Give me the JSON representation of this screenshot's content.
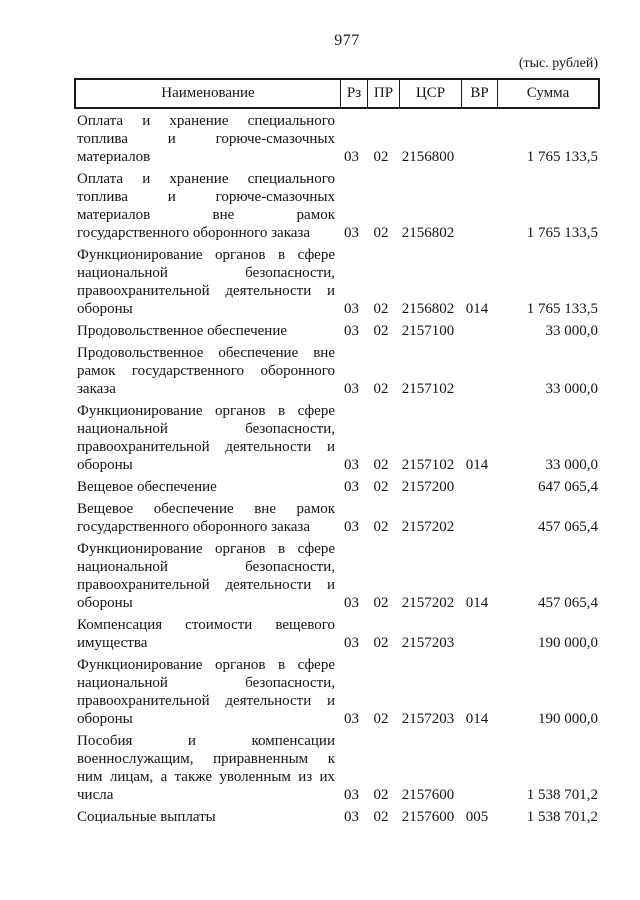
{
  "page": {
    "number": "977"
  },
  "table": {
    "units_note": "(тыс. рублей)",
    "columns": [
      "Наименование",
      "Рз",
      "ПР",
      "ЦСР",
      "ВР",
      "Сумма"
    ],
    "rows": [
      {
        "name_lines": [
          "Оплата и хранение специального",
          "топлива и горюче-смазочных",
          "материалов"
        ],
        "rz": "03",
        "pr": "02",
        "csr": "2156800",
        "vr": "",
        "sum": "1 765 133,5"
      },
      {
        "name_lines": [
          "Оплата и хранение специального",
          "топлива и горюче-смазочных",
          "материалов вне рамок",
          "государственного оборонного заказа"
        ],
        "rz": "03",
        "pr": "02",
        "csr": "2156802",
        "vr": "",
        "sum": "1 765 133,5"
      },
      {
        "name_lines": [
          "Функционирование органов в сфере",
          "национальной безопасности,",
          "правоохранительной деятельности и",
          "обороны"
        ],
        "rz": "03",
        "pr": "02",
        "csr": "2156802",
        "vr": "014",
        "sum": "1 765 133,5"
      },
      {
        "name_lines": [
          "Продовольственное обеспечение"
        ],
        "rz": "03",
        "pr": "02",
        "csr": "2157100",
        "vr": "",
        "sum": "33 000,0"
      },
      {
        "name_lines": [
          "Продовольственное обеспечение вне",
          "рамок государственного оборонного",
          "заказа"
        ],
        "rz": "03",
        "pr": "02",
        "csr": "2157102",
        "vr": "",
        "sum": "33 000,0"
      },
      {
        "name_lines": [
          "Функционирование органов в сфере",
          "национальной безопасности,",
          "правоохранительной деятельности и",
          "обороны"
        ],
        "rz": "03",
        "pr": "02",
        "csr": "2157102",
        "vr": "014",
        "sum": "33 000,0"
      },
      {
        "name_lines": [
          "Вещевое обеспечение"
        ],
        "rz": "03",
        "pr": "02",
        "csr": "2157200",
        "vr": "",
        "sum": "647 065,4"
      },
      {
        "name_lines": [
          "Вещевое обеспечение вне рамок",
          "государственного оборонного заказа"
        ],
        "rz": "03",
        "pr": "02",
        "csr": "2157202",
        "vr": "",
        "sum": "457 065,4"
      },
      {
        "name_lines": [
          "Функционирование органов в сфере",
          "национальной безопасности,",
          "правоохранительной деятельности и",
          "обороны"
        ],
        "rz": "03",
        "pr": "02",
        "csr": "2157202",
        "vr": "014",
        "sum": "457 065,4"
      },
      {
        "name_lines": [
          "Компенсация стоимости вещевого",
          "имущества"
        ],
        "rz": "03",
        "pr": "02",
        "csr": "2157203",
        "vr": "",
        "sum": "190 000,0"
      },
      {
        "name_lines": [
          "Функционирование органов в сфере",
          "национальной безопасности,",
          "правоохранительной деятельности и",
          "обороны"
        ],
        "rz": "03",
        "pr": "02",
        "csr": "2157203",
        "vr": "014",
        "sum": "190 000,0"
      },
      {
        "name_lines": [
          "Пособия и компенсации",
          "военнослужащим, приравненным к",
          "ним лицам, а также уволенным из их",
          "числа"
        ],
        "rz": "03",
        "pr": "02",
        "csr": "2157600",
        "vr": "",
        "sum": "1 538 701,2"
      },
      {
        "name_lines": [
          "Социальные выплаты"
        ],
        "rz": "03",
        "pr": "02",
        "csr": "2157600",
        "vr": "005",
        "sum": "1 538 701,2"
      }
    ]
  }
}
